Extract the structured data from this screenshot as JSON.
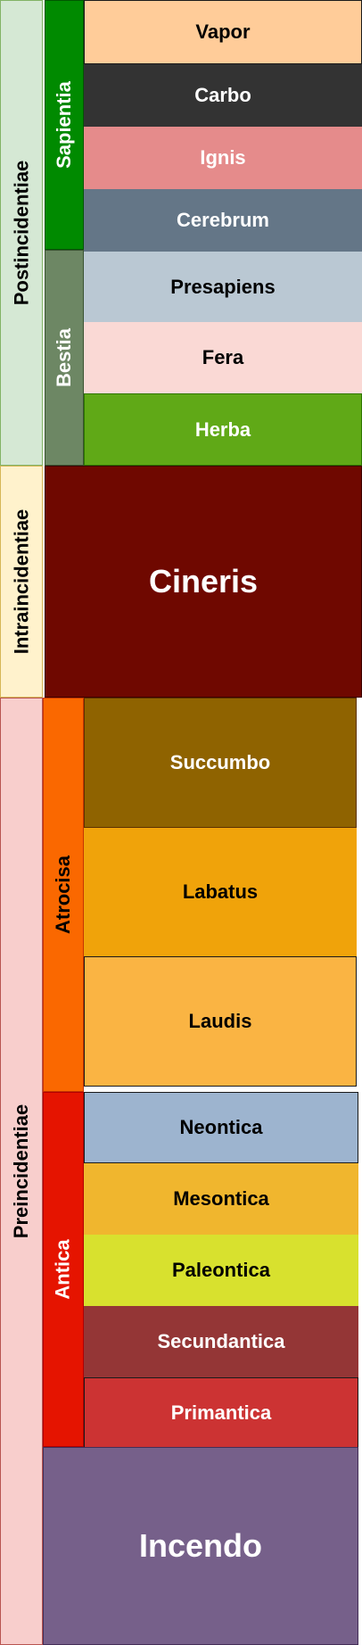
{
  "eras": [
    {
      "label": "Postincidentiae",
      "color": "#d5e8d4",
      "border": "#82b366"
    },
    {
      "label": "Intraincidentiae",
      "color": "#fff2cc",
      "border": "#d6b656"
    },
    {
      "label": "Preincidentiae",
      "color": "#f8cecc",
      "border": "#b85450"
    }
  ],
  "groups": [
    {
      "label": "Sapientia",
      "color": "#008a00",
      "text_color": "#ffffff"
    },
    {
      "label": "Bestia",
      "color": "#6d8764",
      "text_color": "#ffffff"
    },
    {
      "label": "Atrocisa",
      "color": "#fa6800",
      "text_color": "#000000"
    },
    {
      "label": "Antica",
      "color": "#e51400",
      "text_color": "#ffffff"
    }
  ],
  "periods": [
    {
      "label": "Vapor",
      "color": "#ffcc99",
      "text_color": "#000000"
    },
    {
      "label": "Carbo",
      "color": "#333333",
      "text_color": "#ffffff"
    },
    {
      "label": "Ignis",
      "color": "#e58b8b",
      "text_color": "#ffffff"
    },
    {
      "label": "Cerebrum",
      "color": "#647687",
      "text_color": "#ffffff"
    },
    {
      "label": "Presapiens",
      "color": "#bac8d3",
      "text_color": "#000000"
    },
    {
      "label": "Fera",
      "color": "#fad9d5",
      "text_color": "#000000"
    },
    {
      "label": "Herba",
      "color": "#60a917",
      "text_color": "#ffffff"
    },
    {
      "label": "Succumbo",
      "color": "#8f6300",
      "text_color": "#ffffff"
    },
    {
      "label": "Labatus",
      "color": "#f0a30a",
      "text_color": "#000000"
    },
    {
      "label": "Laudis",
      "color": "#fab443",
      "text_color": "#000000"
    },
    {
      "label": "Neontica",
      "color": "#9db4cf",
      "text_color": "#000000"
    },
    {
      "label": "Mesontica",
      "color": "#f0b62e",
      "text_color": "#000000"
    },
    {
      "label": "Paleontica",
      "color": "#d8e12e",
      "text_color": "#000000"
    },
    {
      "label": "Secundantica",
      "color": "#943636",
      "text_color": "#ffffff"
    },
    {
      "label": "Primantica",
      "color": "#cc3333",
      "text_color": "#ffffff"
    }
  ],
  "spans": [
    {
      "label": "Cineris",
      "color": "#6f0800",
      "text_color": "#ffffff"
    },
    {
      "label": "Incendo",
      "color": "#76608a",
      "text_color": "#ffffff"
    }
  ]
}
